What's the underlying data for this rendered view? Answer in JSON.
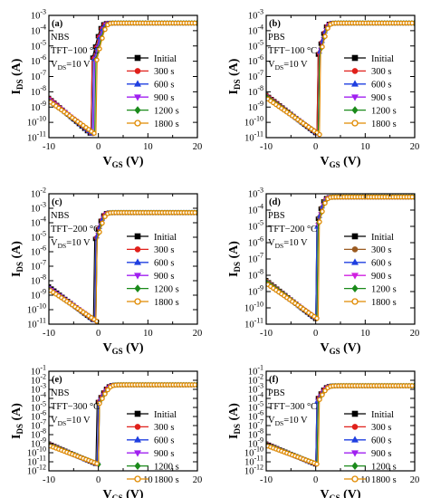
{
  "chart_data": [
    {
      "type": "line",
      "panel_label": "(a)",
      "annotations": [
        "NBS",
        "TFT−100 °C",
        "V",
        "DS",
        "=10 V"
      ],
      "xlabel": "V",
      "xlabel_sub": "GS",
      "xlabel_unit": " (V)",
      "ylabel": "I",
      "ylabel_sub": "DS",
      "ylabel_unit": " (A)",
      "xlim": [
        -10,
        20
      ],
      "xticks": [
        "-10",
        "0",
        "10",
        "20"
      ],
      "ylim": [
        -11,
        -3
      ],
      "yscale": "log",
      "yticks": [
        {
          "base": "10",
          "exp": "-11"
        },
        {
          "base": "10",
          "exp": "-10"
        },
        {
          "base": "10",
          "exp": "-9"
        },
        {
          "base": "10",
          "exp": "-8"
        },
        {
          "base": "10",
          "exp": "-7"
        },
        {
          "base": "10",
          "exp": "-6"
        },
        {
          "base": "10",
          "exp": "-5"
        },
        {
          "base": "10",
          "exp": "-4"
        },
        {
          "base": "10",
          "exp": "-3"
        }
      ],
      "series": [
        {
          "name": "Initial",
          "color": "#000000",
          "marker": "square",
          "params": {
            "Vmin": -1.5,
            "Imin": -10.8,
            "Ileft": -8.4,
            "Isat": -3.5,
            "Vt": 0.5,
            "slope": 0.75
          }
        },
        {
          "name": "300 s",
          "color": "#e0201b",
          "marker": "circle",
          "params": {
            "Vmin": -1.3,
            "Imin": -10.8,
            "Ileft": -8.4,
            "Isat": -3.5,
            "Vt": 0.7,
            "slope": 0.75
          }
        },
        {
          "name": "600 s",
          "color": "#1f3fe0",
          "marker": "triangle",
          "params": {
            "Vmin": -1.1,
            "Imin": -10.8,
            "Ileft": -8.5,
            "Isat": -3.5,
            "Vt": 0.9,
            "slope": 0.75
          }
        },
        {
          "name": "900 s",
          "color": "#a020f0",
          "marker": "triangle-down",
          "params": {
            "Vmin": -0.9,
            "Imin": -10.8,
            "Ileft": -8.5,
            "Isat": -3.5,
            "Vt": 1.1,
            "slope": 0.75
          }
        },
        {
          "name": "1200 s",
          "color": "#1a8a1a",
          "marker": "diamond",
          "params": {
            "Vmin": -0.7,
            "Imin": -10.8,
            "Ileft": -8.6,
            "Isat": -3.5,
            "Vt": 1.3,
            "slope": 0.75
          }
        },
        {
          "name": "1800 s",
          "color": "#e08a00",
          "marker": "circle-open",
          "params": {
            "Vmin": -0.5,
            "Imin": -10.8,
            "Ileft": -8.6,
            "Isat": -3.5,
            "Vt": 1.5,
            "slope": 0.75
          }
        }
      ]
    },
    {
      "type": "line",
      "panel_label": "(b)",
      "annotations": [
        "PBS",
        "TFT−100 °C",
        "V",
        "DS",
        "=10 V"
      ],
      "xlabel": "V",
      "xlabel_sub": "GS",
      "xlabel_unit": " (V)",
      "ylabel": "I",
      "ylabel_sub": "DS",
      "ylabel_unit": " (A)",
      "xlim": [
        -10,
        20
      ],
      "xticks": [
        "-10",
        "0",
        "10",
        "20"
      ],
      "ylim": [
        -11,
        -3
      ],
      "yscale": "log",
      "yticks": [
        {
          "base": "10",
          "exp": "-11"
        },
        {
          "base": "10",
          "exp": "-10"
        },
        {
          "base": "10",
          "exp": "-9"
        },
        {
          "base": "10",
          "exp": "-8"
        },
        {
          "base": "10",
          "exp": "-7"
        },
        {
          "base": "10",
          "exp": "-6"
        },
        {
          "base": "10",
          "exp": "-5"
        },
        {
          "base": "10",
          "exp": "-4"
        },
        {
          "base": "10",
          "exp": "-3"
        }
      ],
      "series": [
        {
          "name": "Initial",
          "color": "#000000",
          "marker": "square",
          "params": {
            "Vmin": 0.3,
            "Imin": -10.8,
            "Ileft": -8.2,
            "Isat": -3.5,
            "Vt": 2.0,
            "slope": 0.75
          }
        },
        {
          "name": "300 s",
          "color": "#e0201b",
          "marker": "circle",
          "params": {
            "Vmin": 0.4,
            "Imin": -10.8,
            "Ileft": -8.2,
            "Isat": -3.5,
            "Vt": 2.1,
            "slope": 0.75
          }
        },
        {
          "name": "600 s",
          "color": "#1f3fe0",
          "marker": "triangle",
          "params": {
            "Vmin": 0.5,
            "Imin": -10.8,
            "Ileft": -8.3,
            "Isat": -3.5,
            "Vt": 2.2,
            "slope": 0.75
          }
        },
        {
          "name": "900 s",
          "color": "#a020f0",
          "marker": "triangle-down",
          "params": {
            "Vmin": 0.6,
            "Imin": -10.8,
            "Ileft": -8.3,
            "Isat": -3.5,
            "Vt": 2.3,
            "slope": 0.75
          }
        },
        {
          "name": "1200 s",
          "color": "#1a8a1a",
          "marker": "diamond",
          "params": {
            "Vmin": 0.7,
            "Imin": -10.8,
            "Ileft": -8.3,
            "Isat": -3.5,
            "Vt": 2.4,
            "slope": 0.75
          }
        },
        {
          "name": "1800 s",
          "color": "#e08a00",
          "marker": "circle-open",
          "params": {
            "Vmin": 0.8,
            "Imin": -10.8,
            "Ileft": -8.4,
            "Isat": -3.5,
            "Vt": 2.5,
            "slope": 0.75
          }
        }
      ]
    },
    {
      "type": "line",
      "panel_label": "(c)",
      "annotations": [
        "NBS",
        "TFT−200 °C",
        "V",
        "DS",
        "=10 V"
      ],
      "xlabel": "V",
      "xlabel_sub": "GS",
      "xlabel_unit": " (V)",
      "ylabel": "I",
      "ylabel_sub": "DS",
      "ylabel_unit": " (A)",
      "xlim": [
        -10,
        20
      ],
      "xticks": [
        "-10",
        "0",
        "10",
        "20"
      ],
      "ylim": [
        -11,
        -2
      ],
      "yscale": "log",
      "yticks": [
        {
          "base": "10",
          "exp": "-11"
        },
        {
          "base": "10",
          "exp": "-10"
        },
        {
          "base": "10",
          "exp": "-9"
        },
        {
          "base": "10",
          "exp": "-8"
        },
        {
          "base": "10",
          "exp": "-7"
        },
        {
          "base": "10",
          "exp": "-6"
        },
        {
          "base": "10",
          "exp": "-5"
        },
        {
          "base": "10",
          "exp": "-4"
        },
        {
          "base": "10",
          "exp": "-3"
        },
        {
          "base": "10",
          "exp": "-2"
        }
      ],
      "series": [
        {
          "name": "Initial",
          "color": "#000000",
          "marker": "square",
          "params": {
            "Vmin": -0.8,
            "Imin": -10.8,
            "Ileft": -8.4,
            "Isat": -3.3,
            "Vt": 0.8,
            "slope": 0.8
          }
        },
        {
          "name": "300 s",
          "color": "#e0201b",
          "marker": "circle",
          "params": {
            "Vmin": -0.7,
            "Imin": -10.8,
            "Ileft": -8.5,
            "Isat": -3.3,
            "Vt": 0.9,
            "slope": 0.8
          }
        },
        {
          "name": "600 s",
          "color": "#1f3fe0",
          "marker": "triangle",
          "params": {
            "Vmin": -0.6,
            "Imin": -10.8,
            "Ileft": -8.5,
            "Isat": -3.3,
            "Vt": 1.0,
            "slope": 0.8
          }
        },
        {
          "name": "900 s",
          "color": "#a020f0",
          "marker": "triangle-down",
          "params": {
            "Vmin": -0.5,
            "Imin": -10.8,
            "Ileft": -8.5,
            "Isat": -3.3,
            "Vt": 1.1,
            "slope": 0.8
          }
        },
        {
          "name": "1200 s",
          "color": "#1a8a1a",
          "marker": "diamond",
          "params": {
            "Vmin": -0.4,
            "Imin": -10.8,
            "Ileft": -8.6,
            "Isat": -3.3,
            "Vt": 1.2,
            "slope": 0.8
          }
        },
        {
          "name": "1800 s",
          "color": "#e08a00",
          "marker": "circle-open",
          "params": {
            "Vmin": -0.3,
            "Imin": -10.8,
            "Ileft": -8.6,
            "Isat": -3.3,
            "Vt": 1.3,
            "slope": 0.8
          }
        }
      ]
    },
    {
      "type": "line",
      "panel_label": "(d)",
      "annotations": [
        "PBS",
        "TFT−200 °C",
        "V",
        "DS",
        "=10 V"
      ],
      "xlabel": "V",
      "xlabel_sub": "GS",
      "xlabel_unit": " (V)",
      "ylabel": "I",
      "ylabel_sub": "DS",
      "ylabel_unit": " (A)",
      "xlim": [
        -10,
        20
      ],
      "xticks": [
        "-10",
        "0",
        "10",
        "20"
      ],
      "ylim": [
        -11,
        -3
      ],
      "yscale": "log",
      "yticks": [
        {
          "base": "10",
          "exp": "-11"
        },
        {
          "base": "10",
          "exp": "-10"
        },
        {
          "base": "10",
          "exp": "-9"
        },
        {
          "base": "10",
          "exp": "-8"
        },
        {
          "base": "10",
          "exp": "-7"
        },
        {
          "base": "10",
          "exp": "-6"
        },
        {
          "base": "10",
          "exp": "-5"
        },
        {
          "base": "10",
          "exp": "-4"
        },
        {
          "base": "10",
          "exp": "-3"
        }
      ],
      "series": [
        {
          "name": "Initial",
          "color": "#000000",
          "marker": "square",
          "params": {
            "Vmin": 0.0,
            "Imin": -10.7,
            "Ileft": -8.3,
            "Isat": -3.2,
            "Vt": 1.5,
            "slope": 0.8
          }
        },
        {
          "name": "300 s",
          "color": "#9a5a20",
          "marker": "circle",
          "params": {
            "Vmin": 0.1,
            "Imin": -10.7,
            "Ileft": -8.3,
            "Isat": -3.2,
            "Vt": 1.6,
            "slope": 0.8
          }
        },
        {
          "name": "600 s",
          "color": "#1f3fe0",
          "marker": "triangle",
          "params": {
            "Vmin": 0.2,
            "Imin": -10.7,
            "Ileft": -8.4,
            "Isat": -3.2,
            "Vt": 1.7,
            "slope": 0.8
          }
        },
        {
          "name": "900 s",
          "color": "#d020e0",
          "marker": "triangle-down",
          "params": {
            "Vmin": 0.3,
            "Imin": -10.7,
            "Ileft": -8.4,
            "Isat": -3.2,
            "Vt": 1.8,
            "slope": 0.8
          }
        },
        {
          "name": "1200 s",
          "color": "#1a8a1a",
          "marker": "diamond",
          "params": {
            "Vmin": 0.4,
            "Imin": -10.7,
            "Ileft": -8.4,
            "Isat": -3.2,
            "Vt": 1.9,
            "slope": 0.8
          }
        },
        {
          "name": "1800 s",
          "color": "#e08a00",
          "marker": "circle-open",
          "params": {
            "Vmin": 0.5,
            "Imin": -10.7,
            "Ileft": -8.5,
            "Isat": -3.2,
            "Vt": 2.0,
            "slope": 0.8
          }
        }
      ]
    },
    {
      "type": "line",
      "panel_label": "(e)",
      "annotations": [
        "NBS",
        "TFT−300 °C",
        "V",
        "DS",
        "=10 V"
      ],
      "xlabel": "V",
      "xlabel_sub": "GS",
      "xlabel_unit": " (V)",
      "ylabel": "I",
      "ylabel_sub": "DS",
      "ylabel_unit": " (A)",
      "xlim": [
        -10,
        20
      ],
      "xticks": [
        "-10",
        "0",
        "10",
        "20"
      ],
      "ylim": [
        -12,
        -1
      ],
      "yscale": "log",
      "yticks": [
        {
          "base": "10",
          "exp": "-12"
        },
        {
          "base": "10",
          "exp": "-11"
        },
        {
          "base": "10",
          "exp": "-10"
        },
        {
          "base": "10",
          "exp": "-9"
        },
        {
          "base": "10",
          "exp": "-8"
        },
        {
          "base": "10",
          "exp": "-7"
        },
        {
          "base": "10",
          "exp": "-6"
        },
        {
          "base": "10",
          "exp": "-5"
        },
        {
          "base": "10",
          "exp": "-4"
        },
        {
          "base": "10",
          "exp": "-3"
        },
        {
          "base": "10",
          "exp": "-2"
        },
        {
          "base": "10",
          "exp": "-1"
        }
      ],
      "series": [
        {
          "name": "Initial",
          "color": "#000000",
          "marker": "square",
          "params": {
            "Vmin": -0.3,
            "Imin": -11.3,
            "Ileft": -9.0,
            "Isat": -2.5,
            "Vt": 1.8,
            "slope": 1.0
          }
        },
        {
          "name": "300 s",
          "color": "#e0201b",
          "marker": "circle",
          "params": {
            "Vmin": -0.2,
            "Imin": -11.3,
            "Ileft": -9.0,
            "Isat": -2.5,
            "Vt": 1.9,
            "slope": 1.0
          }
        },
        {
          "name": "600 s",
          "color": "#1f3fe0",
          "marker": "triangle",
          "params": {
            "Vmin": -0.1,
            "Imin": -11.3,
            "Ileft": -9.1,
            "Isat": -2.5,
            "Vt": 2.0,
            "slope": 1.0
          }
        },
        {
          "name": "900 s",
          "color": "#a020f0",
          "marker": "triangle-down",
          "params": {
            "Vmin": 0.0,
            "Imin": -11.3,
            "Ileft": -9.1,
            "Isat": -2.5,
            "Vt": 2.1,
            "slope": 1.0
          }
        },
        {
          "name": "1200 s",
          "color": "#1a8a1a",
          "marker": "diamond",
          "params": {
            "Vmin": 0.1,
            "Imin": -11.3,
            "Ileft": -9.1,
            "Isat": -2.5,
            "Vt": 2.2,
            "slope": 1.0
          }
        },
        {
          "name": "1800 s",
          "color": "#e08a00",
          "marker": "circle-open",
          "params": {
            "Vmin": 0.2,
            "Imin": -11.3,
            "Ileft": -9.2,
            "Isat": -2.5,
            "Vt": 2.3,
            "slope": 1.0
          }
        }
      ]
    },
    {
      "type": "line",
      "panel_label": "(f)",
      "annotations": [
        "PBS",
        "TFT−300 °C",
        "V",
        "DS",
        "=10 V"
      ],
      "xlabel": "V",
      "xlabel_sub": "GS",
      "xlabel_unit": " (V)",
      "ylabel": "I",
      "ylabel_sub": "DS",
      "ylabel_unit": " (A)",
      "xlim": [
        -10,
        20
      ],
      "xticks": [
        "-10",
        "0",
        "10",
        "20"
      ],
      "ylim": [
        -12,
        -1
      ],
      "yscale": "log",
      "yticks": [
        {
          "base": "10",
          "exp": "-12"
        },
        {
          "base": "10",
          "exp": "-11"
        },
        {
          "base": "10",
          "exp": "-10"
        },
        {
          "base": "10",
          "exp": "-9"
        },
        {
          "base": "10",
          "exp": "-8"
        },
        {
          "base": "10",
          "exp": "-7"
        },
        {
          "base": "10",
          "exp": "-6"
        },
        {
          "base": "10",
          "exp": "-5"
        },
        {
          "base": "10",
          "exp": "-4"
        },
        {
          "base": "10",
          "exp": "-3"
        },
        {
          "base": "10",
          "exp": "-2"
        },
        {
          "base": "10",
          "exp": "-1"
        }
      ],
      "series": [
        {
          "name": "Initial",
          "color": "#000000",
          "marker": "square",
          "params": {
            "Vmin": 0.0,
            "Imin": -11.3,
            "Ileft": -9.0,
            "Isat": -2.6,
            "Vt": 1.8,
            "slope": 1.0
          }
        },
        {
          "name": "300 s",
          "color": "#e0201b",
          "marker": "circle",
          "params": {
            "Vmin": 0.1,
            "Imin": -11.3,
            "Ileft": -9.0,
            "Isat": -2.6,
            "Vt": 1.9,
            "slope": 1.0
          }
        },
        {
          "name": "600 s",
          "color": "#1f3fe0",
          "marker": "triangle",
          "params": {
            "Vmin": 0.2,
            "Imin": -11.3,
            "Ileft": -9.1,
            "Isat": -2.6,
            "Vt": 2.0,
            "slope": 1.0
          }
        },
        {
          "name": "900 s",
          "color": "#a020f0",
          "marker": "triangle-down",
          "params": {
            "Vmin": 0.3,
            "Imin": -11.3,
            "Ileft": -9.1,
            "Isat": -2.6,
            "Vt": 2.1,
            "slope": 1.0
          }
        },
        {
          "name": "1200 s",
          "color": "#1a8a1a",
          "marker": "diamond",
          "params": {
            "Vmin": 0.4,
            "Imin": -11.3,
            "Ileft": -9.1,
            "Isat": -2.6,
            "Vt": 2.2,
            "slope": 1.0
          }
        },
        {
          "name": "1800 s",
          "color": "#e08a00",
          "marker": "circle-open",
          "params": {
            "Vmin": 0.5,
            "Imin": -11.3,
            "Ileft": -9.2,
            "Isat": -2.6,
            "Vt": 2.3,
            "slope": 1.0
          }
        }
      ]
    }
  ]
}
